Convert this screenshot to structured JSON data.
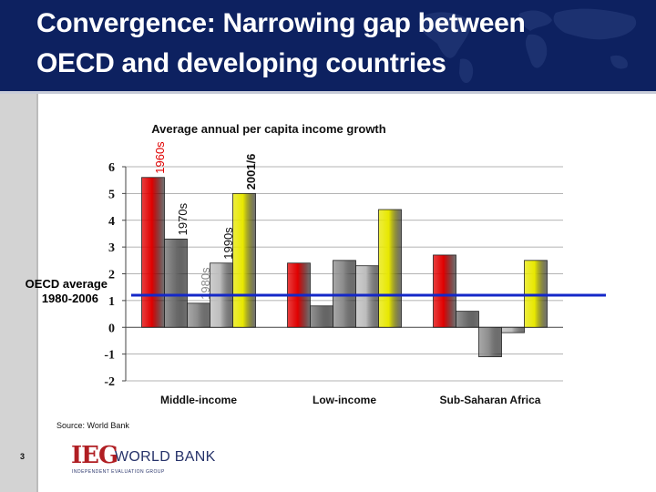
{
  "slide": {
    "title": "Convergence: Narrowing gap between OECD and developing countries",
    "source": "Source: World Bank",
    "page_number": "3",
    "logo": {
      "mark": "IEG",
      "org": "WORLD BANK",
      "subtitle": "Independent Evaluation Group"
    }
  },
  "colors": {
    "header": "#0d2160",
    "sidebar": "#d3d3d3",
    "reference_line": "#1428c8",
    "logo_red": "#b01e23",
    "logo_blue": "#27336a",
    "series": [
      "#e00000",
      "#707070",
      "#8c8c8c",
      "#bdbdbd",
      "#e8e800"
    ]
  },
  "chart_data": {
    "type": "bar",
    "title": "Average annual per capita income growth",
    "xlabel": "",
    "ylabel": "",
    "ylim": [
      -2,
      6
    ],
    "yticks": [
      "-2",
      "-1",
      "0",
      "1",
      "2",
      "3",
      "4",
      "5",
      "6"
    ],
    "grid": true,
    "categories": [
      "Middle-income",
      "Low-income",
      "Sub-Saharan Africa"
    ],
    "series": [
      {
        "name": "1960s",
        "values": [
          5.6,
          2.4,
          2.7
        ]
      },
      {
        "name": "1970s",
        "values": [
          3.3,
          0.8,
          0.6
        ]
      },
      {
        "name": "1980s",
        "values": [
          0.9,
          2.5,
          -1.1
        ]
      },
      {
        "name": "1990s",
        "values": [
          2.4,
          2.3,
          -0.2
        ]
      },
      {
        "name": "2001/6",
        "values": [
          5.0,
          4.4,
          2.5
        ]
      }
    ],
    "annotations": [
      {
        "text": "1960s",
        "color": "#e00000"
      },
      {
        "text": "1970s",
        "color": "#111111"
      },
      {
        "text": "1980s",
        "color": "#8a8a8a"
      },
      {
        "text": "1990s",
        "color": "#111111"
      },
      {
        "text": "2001/6",
        "color": "#111111"
      }
    ],
    "reference_line": {
      "value": 1.2,
      "label_line1": "OECD average",
      "label_line2": "1980-2006"
    }
  }
}
